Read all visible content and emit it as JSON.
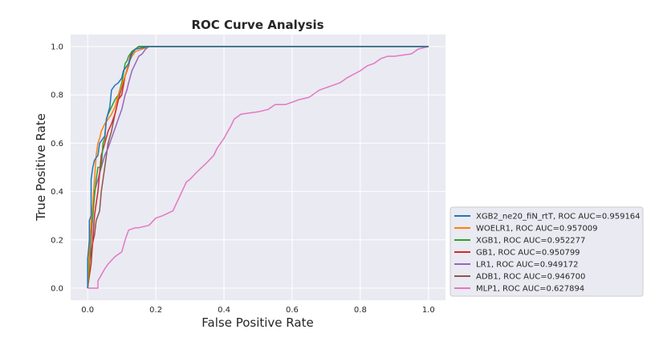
{
  "chart_data": {
    "type": "line",
    "title": "ROC Curve Analysis",
    "xlabel": "False Positive Rate",
    "ylabel": "True Positive Rate",
    "xlim": [
      -0.05,
      1.05
    ],
    "ylim": [
      -0.05,
      1.05
    ],
    "xticks": [
      "0.0",
      "0.2",
      "0.4",
      "0.6",
      "0.8",
      "1.0"
    ],
    "yticks": [
      "0.0",
      "0.2",
      "0.4",
      "0.6",
      "0.8",
      "1.0"
    ],
    "grid": true,
    "legend_position": "right-bottom, outside plot",
    "series": [
      {
        "name": "XGB2_ne20_fiN_rtT, ROC AUC=0.959164",
        "color": "#1f77b4",
        "x": [
          0.0,
          0.0,
          0.005,
          0.005,
          0.01,
          0.01,
          0.015,
          0.02,
          0.03,
          0.035,
          0.05,
          0.055,
          0.065,
          0.07,
          0.08,
          0.09,
          0.1,
          0.105,
          0.115,
          0.12,
          0.125,
          0.13,
          0.135,
          0.14,
          0.16,
          0.18,
          0.2,
          0.4,
          0.6,
          0.8,
          1.0
        ],
        "y": [
          0.0,
          0.12,
          0.2,
          0.28,
          0.3,
          0.45,
          0.5,
          0.53,
          0.55,
          0.6,
          0.63,
          0.7,
          0.75,
          0.82,
          0.84,
          0.85,
          0.87,
          0.9,
          0.92,
          0.93,
          0.95,
          0.97,
          0.98,
          0.99,
          0.995,
          1.0,
          1.0,
          1.0,
          1.0,
          1.0,
          1.0
        ]
      },
      {
        "name": "WOELR1, ROC AUC=0.957009",
        "color": "#ff7f0e",
        "x": [
          0.0,
          0.005,
          0.01,
          0.015,
          0.02,
          0.025,
          0.03,
          0.035,
          0.04,
          0.05,
          0.06,
          0.07,
          0.08,
          0.09,
          0.1,
          0.11,
          0.12,
          0.13,
          0.14,
          0.16,
          0.18,
          0.2,
          0.4,
          0.6,
          0.8,
          1.0
        ],
        "y": [
          0.0,
          0.15,
          0.28,
          0.35,
          0.45,
          0.55,
          0.6,
          0.62,
          0.65,
          0.68,
          0.7,
          0.72,
          0.75,
          0.8,
          0.84,
          0.88,
          0.93,
          0.96,
          0.98,
          0.99,
          1.0,
          1.0,
          1.0,
          1.0,
          1.0,
          1.0
        ]
      },
      {
        "name": "XGB1, ROC AUC=0.952277",
        "color": "#2ca02c",
        "x": [
          0.0,
          0.005,
          0.01,
          0.015,
          0.02,
          0.025,
          0.03,
          0.04,
          0.045,
          0.05,
          0.055,
          0.06,
          0.07,
          0.08,
          0.09,
          0.1,
          0.11,
          0.115,
          0.12,
          0.13,
          0.14,
          0.15,
          0.17,
          0.2,
          0.4,
          0.6,
          0.8,
          1.0
        ],
        "y": [
          0.0,
          0.08,
          0.25,
          0.3,
          0.38,
          0.45,
          0.5,
          0.5,
          0.6,
          0.62,
          0.7,
          0.72,
          0.75,
          0.78,
          0.8,
          0.85,
          0.93,
          0.94,
          0.96,
          0.98,
          0.99,
          1.0,
          1.0,
          1.0,
          1.0,
          1.0,
          1.0,
          1.0
        ]
      },
      {
        "name": "GB1, ROC AUC=0.950799",
        "color": "#d62728",
        "x": [
          0.0,
          0.005,
          0.01,
          0.02,
          0.025,
          0.03,
          0.04,
          0.05,
          0.06,
          0.07,
          0.08,
          0.09,
          0.1,
          0.11,
          0.115,
          0.12,
          0.125,
          0.13,
          0.14,
          0.15,
          0.16,
          0.2,
          0.4,
          0.6,
          0.8,
          1.0
        ],
        "y": [
          0.0,
          0.05,
          0.1,
          0.3,
          0.35,
          0.4,
          0.55,
          0.6,
          0.65,
          0.68,
          0.72,
          0.78,
          0.8,
          0.88,
          0.9,
          0.93,
          0.96,
          0.98,
          0.99,
          1.0,
          1.0,
          1.0,
          1.0,
          1.0,
          1.0,
          1.0
        ]
      },
      {
        "name": "LR1, ROC AUC=0.949172",
        "color": "#9467bd",
        "x": [
          0.0,
          0.005,
          0.01,
          0.02,
          0.03,
          0.04,
          0.05,
          0.06,
          0.07,
          0.08,
          0.09,
          0.1,
          0.11,
          0.115,
          0.12,
          0.13,
          0.14,
          0.15,
          0.16,
          0.17,
          0.18,
          0.2,
          0.4,
          0.6,
          0.8,
          1.0
        ],
        "y": [
          0.0,
          0.1,
          0.2,
          0.4,
          0.45,
          0.5,
          0.55,
          0.58,
          0.62,
          0.66,
          0.7,
          0.74,
          0.8,
          0.82,
          0.85,
          0.9,
          0.93,
          0.96,
          0.97,
          0.99,
          1.0,
          1.0,
          1.0,
          1.0,
          1.0,
          1.0
        ]
      },
      {
        "name": "ADB1, ROC AUC=0.946700",
        "color": "#8c564b",
        "x": [
          0.0,
          0.005,
          0.01,
          0.015,
          0.02,
          0.025,
          0.03,
          0.035,
          0.04,
          0.05,
          0.06,
          0.07,
          0.08,
          0.09,
          0.1,
          0.11,
          0.12,
          0.125,
          0.13,
          0.14,
          0.15,
          0.2,
          0.4,
          0.6,
          0.8,
          1.0
        ],
        "y": [
          0.0,
          0.1,
          0.15,
          0.19,
          0.22,
          0.28,
          0.3,
          0.32,
          0.4,
          0.5,
          0.6,
          0.65,
          0.72,
          0.78,
          0.83,
          0.88,
          0.92,
          0.95,
          0.98,
          0.99,
          1.0,
          1.0,
          1.0,
          1.0,
          1.0,
          1.0
        ]
      },
      {
        "name": "MLP1, ROC AUC=0.627894",
        "color": "#e377c2",
        "x": [
          0.0,
          0.03,
          0.03,
          0.05,
          0.06,
          0.08,
          0.1,
          0.11,
          0.12,
          0.14,
          0.15,
          0.18,
          0.2,
          0.22,
          0.25,
          0.27,
          0.29,
          0.3,
          0.32,
          0.35,
          0.37,
          0.38,
          0.4,
          0.42,
          0.43,
          0.45,
          0.5,
          0.53,
          0.55,
          0.58,
          0.6,
          0.62,
          0.65,
          0.68,
          0.7,
          0.72,
          0.74,
          0.76,
          0.8,
          0.82,
          0.84,
          0.86,
          0.88,
          0.9,
          0.95,
          0.96,
          0.97,
          1.0
        ],
        "y": [
          0.0,
          0.0,
          0.03,
          0.08,
          0.1,
          0.13,
          0.15,
          0.2,
          0.24,
          0.25,
          0.25,
          0.26,
          0.29,
          0.3,
          0.32,
          0.38,
          0.44,
          0.45,
          0.48,
          0.52,
          0.55,
          0.58,
          0.62,
          0.67,
          0.7,
          0.72,
          0.73,
          0.74,
          0.76,
          0.76,
          0.77,
          0.78,
          0.79,
          0.82,
          0.83,
          0.84,
          0.85,
          0.87,
          0.9,
          0.92,
          0.93,
          0.95,
          0.96,
          0.96,
          0.97,
          0.98,
          0.99,
          1.0
        ]
      }
    ]
  }
}
